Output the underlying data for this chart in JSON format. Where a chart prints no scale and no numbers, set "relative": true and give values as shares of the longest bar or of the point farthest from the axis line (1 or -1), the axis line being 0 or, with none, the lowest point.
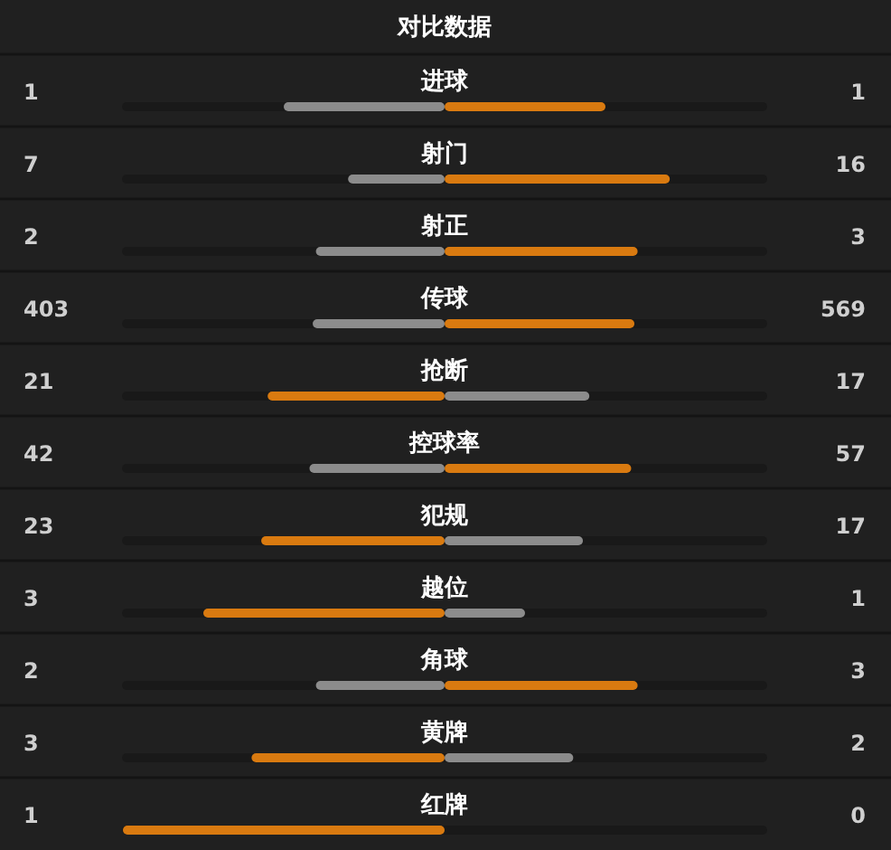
{
  "chart_data": {
    "type": "bar",
    "orientation": "horizontal",
    "relative": true,
    "stacked": true,
    "title": "对比数据",
    "categories": [
      "进球",
      "射门",
      "射正",
      "传球",
      "抢断",
      "控球率",
      "犯规",
      "越位",
      "角球",
      "黄牌",
      "红牌"
    ],
    "series": [
      {
        "values": [
          -0.5,
          -0.3,
          -0.4,
          -0.41,
          -0.55,
          -0.42,
          -0.57,
          -0.75,
          -0.4,
          -0.6,
          -1
        ],
        "colors": [
          "#8c8c8c",
          "#8c8c8c",
          "#8c8c8c",
          "#8c8c8c",
          "#d97a10",
          "#8c8c8c",
          "#d97a10",
          "#d97a10",
          "#8c8c8c",
          "#d97a10",
          "#d97a10"
        ]
      },
      {
        "values": [
          0.5,
          0.7,
          0.6,
          0.59,
          0.45,
          0.58,
          0.43,
          0.25,
          0.6,
          0.4,
          0
        ],
        "colors": [
          "#d97a10",
          "#d97a10",
          "#d97a10",
          "#d97a10",
          "#8c8c8c",
          "#d97a10",
          "#8c8c8c",
          "#8c8c8c",
          "#d97a10",
          "#8c8c8c",
          "#8c8c8c"
        ]
      }
    ],
    "annotations": [
      "1",
      "1",
      "7",
      "16",
      "2",
      "3",
      "403",
      "569",
      "21",
      "17",
      "42",
      "57",
      "23",
      "17",
      "3",
      "1",
      "2",
      "3",
      "3",
      "2",
      "1",
      "0"
    ]
  }
}
